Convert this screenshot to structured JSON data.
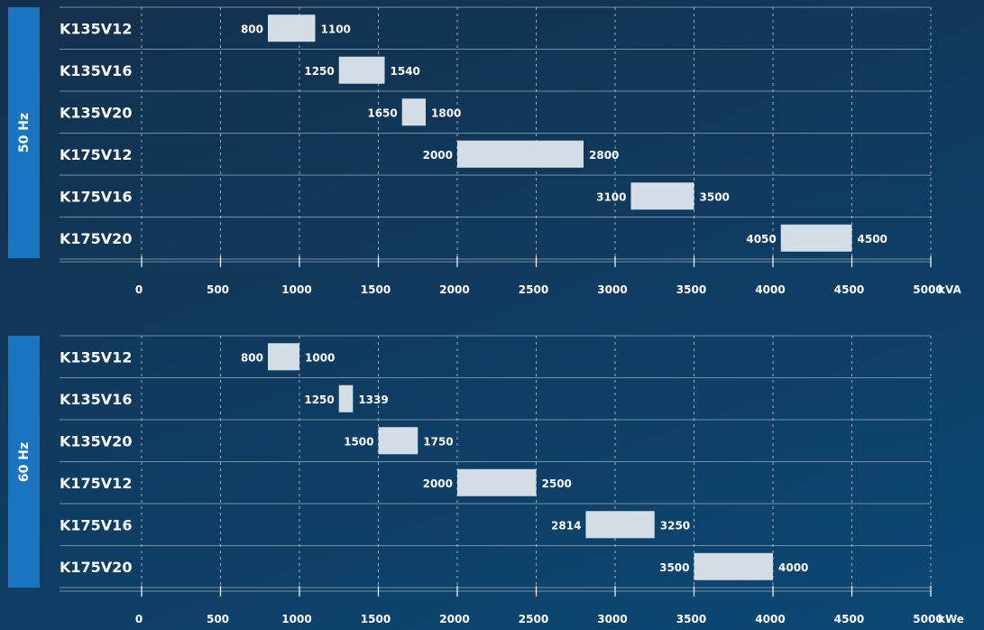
{
  "chart_data": [
    {
      "type": "bar",
      "subtype": "range-bar (horizontal)",
      "panel_label": "50 Hz",
      "unit": "kVA",
      "x_ticks": [
        0,
        500,
        1000,
        1500,
        2000,
        2500,
        3000,
        3500,
        4000,
        4500,
        5000
      ],
      "xlim": [
        0,
        5000
      ],
      "grid": true,
      "bar_color": "#d3dde5",
      "categories": [
        "K135V12",
        "K135V16",
        "K135V20",
        "K175V12",
        "K175V16",
        "K175V20"
      ],
      "ranges": [
        [
          800,
          1100
        ],
        [
          1250,
          1540
        ],
        [
          1650,
          1800
        ],
        [
          2000,
          2800
        ],
        [
          3100,
          3500
        ],
        [
          4050,
          4500
        ]
      ]
    },
    {
      "type": "bar",
      "subtype": "range-bar (horizontal)",
      "panel_label": "60 Hz",
      "unit": "kWe",
      "x_ticks": [
        0,
        500,
        1000,
        1500,
        2000,
        2500,
        3000,
        3500,
        4000,
        4500,
        5000
      ],
      "xlim": [
        0,
        5000
      ],
      "grid": true,
      "bar_color": "#d3dde5",
      "categories": [
        "K135V12",
        "K135V16",
        "K135V20",
        "K175V12",
        "K175V16",
        "K175V20"
      ],
      "ranges": [
        [
          800,
          1000
        ],
        [
          1250,
          1339
        ],
        [
          1500,
          1750
        ],
        [
          2000,
          2500
        ],
        [
          2814,
          3250
        ],
        [
          3500,
          4000
        ]
      ]
    }
  ]
}
